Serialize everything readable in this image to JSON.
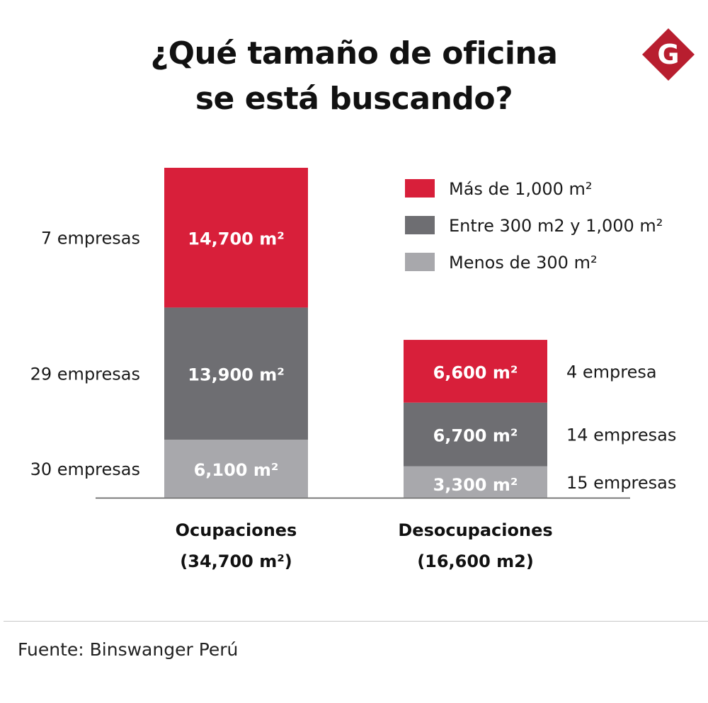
{
  "title_line1": "¿Qué tamaño de oficina",
  "title_line2": "se está buscando?",
  "logo_letter": "G",
  "colors": {
    "red": "#d81f3a",
    "dark_gray": "#6e6e72",
    "light_gray": "#a8a8ac",
    "logo_red": "#b81e2f"
  },
  "source": "Fuente: Binswanger Perú",
  "chart_data": {
    "type": "bar",
    "stacked": true,
    "categories": [
      "Ocupaciones",
      "Desocupaciones"
    ],
    "category_totals": [
      "(34,700 m²)",
      "(16,600 m2)"
    ],
    "series": [
      {
        "name": "Menos de 300 m²",
        "color": "#a8a8ac",
        "values": [
          6100,
          3300
        ],
        "value_labels": [
          "6,100 m²",
          "3,300 m²"
        ],
        "company_labels": [
          "30 empresas",
          "15 empresas"
        ]
      },
      {
        "name": "Entre 300 m2 y 1,000 m²",
        "color": "#6e6e72",
        "values": [
          13900,
          6700
        ],
        "value_labels": [
          "13,900 m²",
          "6,700 m²"
        ],
        "company_labels": [
          "29 empresas",
          "14 empresas"
        ]
      },
      {
        "name": "Más de 1,000 m²",
        "color": "#d81f3a",
        "values": [
          14700,
          6600
        ],
        "value_labels": [
          "14,700 m²",
          "6,600 m²"
        ],
        "company_labels": [
          "7 empresas",
          "4 empresa"
        ]
      }
    ],
    "legend_order": [
      "Más de 1,000 m²",
      "Entre 300 m2 y 1,000 m²",
      "Menos de 300 m²"
    ],
    "legend_position": "top-right",
    "ylim": [
      0,
      34700
    ],
    "grid": false
  }
}
